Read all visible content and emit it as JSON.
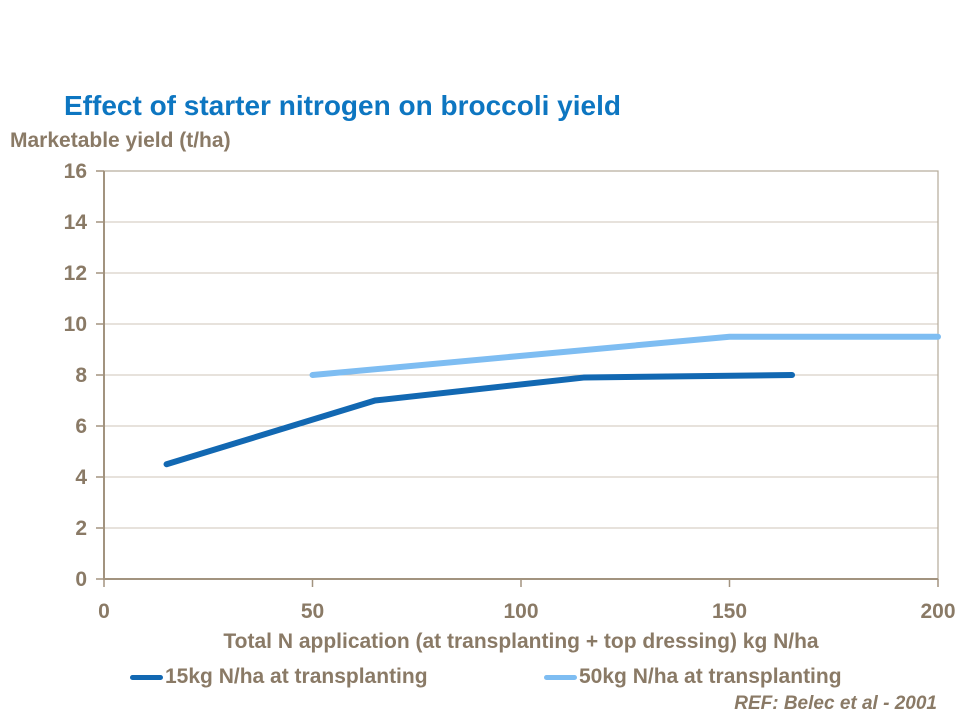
{
  "slide": {
    "title": "Effect of starter nitrogen on broccoli yield",
    "reference": "REF: Belec et al - 2001"
  },
  "chart_data": {
    "type": "line",
    "title": "Effect of starter nitrogen on broccoli yield",
    "ylabel": "Marketable yield (t/ha)",
    "xlabel": "Total N application (at transplanting + top dressing) kg N/ha",
    "xlim": [
      0,
      200
    ],
    "ylim": [
      0,
      16
    ],
    "x_ticks": [
      0,
      50,
      100,
      150,
      200
    ],
    "y_ticks": [
      0,
      2,
      4,
      6,
      8,
      10,
      12,
      14,
      16
    ],
    "grid": "horizontal",
    "legend_position": "bottom",
    "series": [
      {
        "name": "15kg N/ha at transplanting",
        "color": "#1268b2",
        "x": [
          15,
          65,
          115,
          165
        ],
        "y": [
          4.5,
          7.0,
          7.9,
          8.0
        ]
      },
      {
        "name": "50kg N/ha at transplanting",
        "color": "#7ebdf2",
        "x": [
          50,
          100,
          150,
          200
        ],
        "y": [
          8.0,
          8.75,
          9.5,
          9.5
        ]
      }
    ]
  },
  "colors": {
    "title_blue": "#0d76c1",
    "text_brown": "#8a7a66",
    "series1_blue": "#1268b2",
    "series2_blue": "#7ebdf2",
    "gridline": "#cfc5b8",
    "axis": "#a2937f",
    "plot_border": "#b5aa99",
    "background": "#ffffff"
  }
}
